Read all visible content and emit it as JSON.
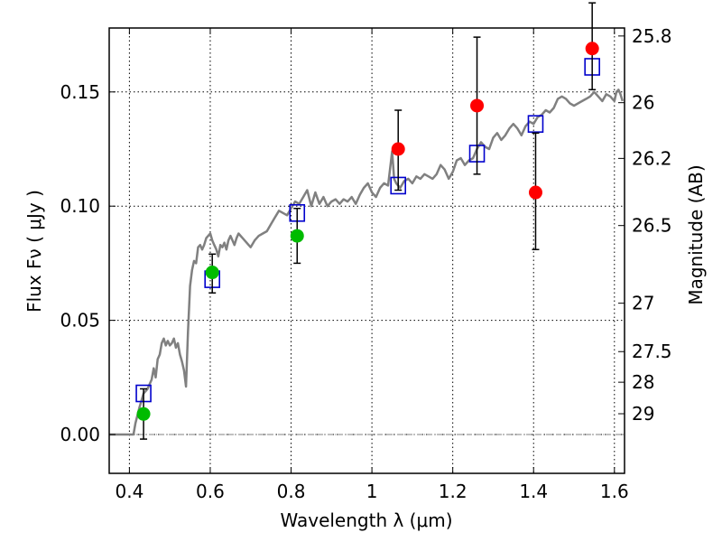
{
  "chart_data": {
    "type": "scatter",
    "xlabel": "Wavelength  λ (μm)",
    "ylabel": "Flux  Fν  ( μJy )",
    "y2label": "Magnitude (AB)",
    "xlim": [
      0.35,
      1.625
    ],
    "ylim": [
      -0.017,
      0.178
    ],
    "grid": true,
    "x_ticks": [
      0.4,
      0.6,
      0.8,
      1.0,
      1.2,
      1.4,
      1.6
    ],
    "x_tick_labels": [
      "0.4",
      "0.6",
      "0.8",
      "1",
      "1.2",
      "1.4",
      "1.6"
    ],
    "y_ticks": [
      0.0,
      0.05,
      0.1,
      0.15
    ],
    "y_tick_labels": [
      "0.00",
      "0.05",
      "0.10",
      "0.15"
    ],
    "y2_ticks": [
      {
        "label": "25.8",
        "flux": 0.1745
      },
      {
        "label": "26",
        "flux": 0.1453
      },
      {
        "label": "26.2",
        "flux": 0.1209
      },
      {
        "label": "26.5",
        "flux": 0.0915
      },
      {
        "label": "27",
        "flux": 0.0575
      },
      {
        "label": "27.5",
        "flux": 0.0363
      },
      {
        "label": "28",
        "flux": 0.0229
      },
      {
        "label": "29",
        "flux": 0.0091
      }
    ],
    "colors": {
      "model": "#808080",
      "red_points": "#ff0000",
      "green_points": "#00bb00",
      "boxes": "#0000cc",
      "errorbars": "#000000",
      "zero_line": "#808080"
    },
    "series": [
      {
        "kind": "line",
        "values_xy": [
          [
            0.35,
            0.0
          ],
          [
            0.4,
            0.0
          ],
          [
            0.41,
            0.0
          ],
          [
            0.415,
            0.005
          ],
          [
            0.425,
            0.012
          ],
          [
            0.435,
            0.018
          ],
          [
            0.445,
            0.02
          ],
          [
            0.455,
            0.024
          ],
          [
            0.46,
            0.029
          ],
          [
            0.465,
            0.025
          ],
          [
            0.47,
            0.033
          ],
          [
            0.475,
            0.035
          ],
          [
            0.48,
            0.04
          ],
          [
            0.485,
            0.042
          ],
          [
            0.49,
            0.039
          ],
          [
            0.495,
            0.041
          ],
          [
            0.5,
            0.039
          ],
          [
            0.505,
            0.04
          ],
          [
            0.51,
            0.042
          ],
          [
            0.515,
            0.038
          ],
          [
            0.52,
            0.04
          ],
          [
            0.525,
            0.035
          ],
          [
            0.53,
            0.032
          ],
          [
            0.535,
            0.028
          ],
          [
            0.54,
            0.021
          ],
          [
            0.545,
            0.045
          ],
          [
            0.55,
            0.065
          ],
          [
            0.555,
            0.072
          ],
          [
            0.56,
            0.076
          ],
          [
            0.565,
            0.075
          ],
          [
            0.57,
            0.082
          ],
          [
            0.575,
            0.083
          ],
          [
            0.58,
            0.081
          ],
          [
            0.585,
            0.083
          ],
          [
            0.59,
            0.086
          ],
          [
            0.595,
            0.087
          ],
          [
            0.6,
            0.088
          ],
          [
            0.605,
            0.085
          ],
          [
            0.61,
            0.083
          ],
          [
            0.615,
            0.081
          ],
          [
            0.62,
            0.078
          ],
          [
            0.625,
            0.083
          ],
          [
            0.63,
            0.082
          ],
          [
            0.635,
            0.084
          ],
          [
            0.64,
            0.081
          ],
          [
            0.645,
            0.085
          ],
          [
            0.65,
            0.087
          ],
          [
            0.655,
            0.085
          ],
          [
            0.66,
            0.083
          ],
          [
            0.665,
            0.086
          ],
          [
            0.67,
            0.088
          ],
          [
            0.68,
            0.086
          ],
          [
            0.69,
            0.084
          ],
          [
            0.7,
            0.082
          ],
          [
            0.71,
            0.085
          ],
          [
            0.72,
            0.087
          ],
          [
            0.73,
            0.088
          ],
          [
            0.74,
            0.089
          ],
          [
            0.75,
            0.092
          ],
          [
            0.76,
            0.095
          ],
          [
            0.77,
            0.098
          ],
          [
            0.78,
            0.097
          ],
          [
            0.79,
            0.096
          ],
          [
            0.8,
            0.099
          ],
          [
            0.81,
            0.102
          ],
          [
            0.82,
            0.101
          ],
          [
            0.83,
            0.104
          ],
          [
            0.84,
            0.107
          ],
          [
            0.85,
            0.1
          ],
          [
            0.86,
            0.106
          ],
          [
            0.87,
            0.101
          ],
          [
            0.88,
            0.104
          ],
          [
            0.89,
            0.1
          ],
          [
            0.9,
            0.102
          ],
          [
            0.91,
            0.103
          ],
          [
            0.92,
            0.101
          ],
          [
            0.93,
            0.103
          ],
          [
            0.94,
            0.102
          ],
          [
            0.95,
            0.104
          ],
          [
            0.96,
            0.101
          ],
          [
            0.97,
            0.105
          ],
          [
            0.98,
            0.108
          ],
          [
            0.99,
            0.11
          ],
          [
            1.0,
            0.106
          ],
          [
            1.01,
            0.104
          ],
          [
            1.02,
            0.108
          ],
          [
            1.03,
            0.11
          ],
          [
            1.04,
            0.109
          ],
          [
            1.05,
            0.124
          ],
          [
            1.055,
            0.112
          ],
          [
            1.06,
            0.11
          ],
          [
            1.07,
            0.108
          ],
          [
            1.08,
            0.111
          ],
          [
            1.09,
            0.112
          ],
          [
            1.1,
            0.11
          ],
          [
            1.11,
            0.113
          ],
          [
            1.12,
            0.112
          ],
          [
            1.13,
            0.114
          ],
          [
            1.14,
            0.113
          ],
          [
            1.15,
            0.112
          ],
          [
            1.16,
            0.114
          ],
          [
            1.17,
            0.118
          ],
          [
            1.18,
            0.116
          ],
          [
            1.19,
            0.112
          ],
          [
            1.2,
            0.115
          ],
          [
            1.21,
            0.12
          ],
          [
            1.22,
            0.121
          ],
          [
            1.23,
            0.118
          ],
          [
            1.24,
            0.12
          ],
          [
            1.25,
            0.121
          ],
          [
            1.26,
            0.125
          ],
          [
            1.27,
            0.128
          ],
          [
            1.28,
            0.126
          ],
          [
            1.29,
            0.125
          ],
          [
            1.3,
            0.13
          ],
          [
            1.31,
            0.132
          ],
          [
            1.32,
            0.129
          ],
          [
            1.33,
            0.131
          ],
          [
            1.34,
            0.134
          ],
          [
            1.35,
            0.136
          ],
          [
            1.36,
            0.134
          ],
          [
            1.37,
            0.131
          ],
          [
            1.38,
            0.135
          ],
          [
            1.39,
            0.137
          ],
          [
            1.4,
            0.136
          ],
          [
            1.41,
            0.139
          ],
          [
            1.42,
            0.14
          ],
          [
            1.43,
            0.142
          ],
          [
            1.44,
            0.141
          ],
          [
            1.45,
            0.143
          ],
          [
            1.46,
            0.147
          ],
          [
            1.47,
            0.148
          ],
          [
            1.48,
            0.147
          ],
          [
            1.49,
            0.145
          ],
          [
            1.5,
            0.144
          ],
          [
            1.51,
            0.145
          ],
          [
            1.52,
            0.146
          ],
          [
            1.53,
            0.147
          ],
          [
            1.54,
            0.148
          ],
          [
            1.55,
            0.15
          ],
          [
            1.56,
            0.148
          ],
          [
            1.57,
            0.146
          ],
          [
            1.58,
            0.149
          ],
          [
            1.59,
            0.148
          ],
          [
            1.6,
            0.146
          ],
          [
            1.605,
            0.15
          ],
          [
            1.61,
            0.151
          ],
          [
            1.615,
            0.149
          ],
          [
            1.62,
            0.146
          ]
        ]
      },
      {
        "kind": "boxes",
        "x": [
          0.435,
          0.605,
          0.815,
          1.065,
          1.26,
          1.405,
          1.545
        ],
        "y": [
          0.018,
          0.068,
          0.097,
          0.109,
          0.123,
          0.136,
          0.161
        ]
      },
      {
        "kind": "points-green",
        "x": [
          0.435,
          0.605,
          0.815
        ],
        "y": [
          0.009,
          0.071,
          0.087
        ],
        "yerr_low": [
          0.011,
          0.009,
          0.012
        ],
        "yerr_high": [
          0.011,
          0.008,
          0.012
        ]
      },
      {
        "kind": "points-red",
        "x": [
          1.065,
          1.26,
          1.405,
          1.545
        ],
        "y": [
          0.125,
          0.144,
          0.106,
          0.169
        ],
        "yerr_low": [
          0.018,
          0.03,
          0.025,
          0.018
        ],
        "yerr_high": [
          0.017,
          0.03,
          0.026,
          0.02
        ]
      }
    ]
  }
}
